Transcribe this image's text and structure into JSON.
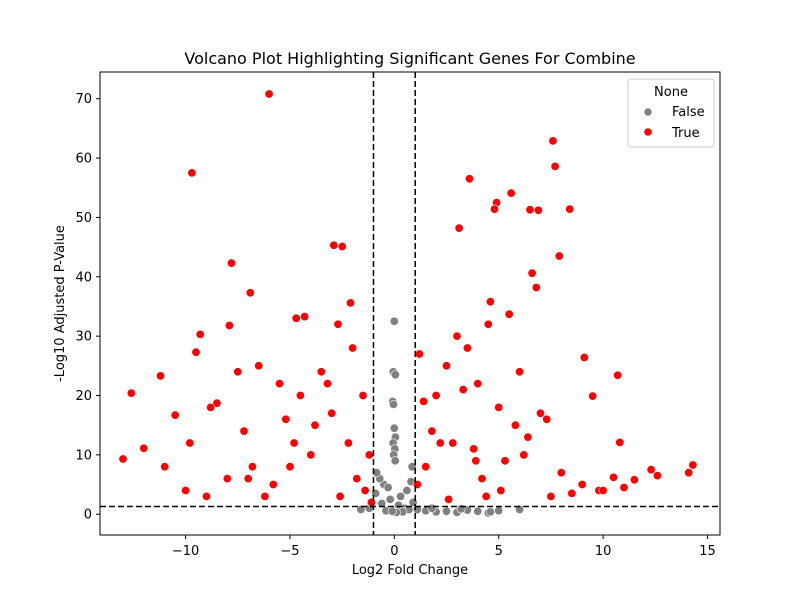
{
  "chart_data": {
    "type": "scatter",
    "title": "Volcano Plot Highlighting Significant Genes For Combine",
    "xlabel": "Log2 Fold Change",
    "ylabel": "-Log10 Adjusted P-Value",
    "xlim": [
      -14.1,
      15.6
    ],
    "ylim": [
      -3.5,
      74.5
    ],
    "xticks": [
      -10,
      -5,
      0,
      5,
      10,
      15
    ],
    "yticks": [
      0,
      10,
      20,
      30,
      40,
      50,
      60,
      70
    ],
    "xtick_labels": [
      "−10",
      "−5",
      "0",
      "5",
      "10",
      "15"
    ],
    "ytick_labels": [
      "0",
      "10",
      "20",
      "30",
      "40",
      "50",
      "60",
      "70"
    ],
    "grid": false,
    "thresholds": {
      "x": [
        -1,
        1
      ],
      "y": 1.3
    },
    "legend": {
      "title": "None",
      "position": "top-right",
      "entries": [
        "False",
        "True"
      ]
    },
    "series": [
      {
        "name": "False",
        "color": "#808080",
        "x": [
          0.0,
          -0.05,
          0.05,
          -0.08,
          -0.04,
          0.0,
          0.05,
          -0.06,
          0.02,
          -0.03,
          0.04,
          -0.5,
          0.6,
          -0.7,
          0.8,
          0.3,
          -0.3,
          0.9,
          -0.9,
          0.2,
          -0.2,
          0.5,
          -0.6,
          0.7,
          -0.4,
          0.4,
          0.1,
          -0.1,
          0.85,
          -0.85,
          1.1,
          1.5,
          2.0,
          2.5,
          3.0,
          3.5,
          4.0,
          4.5,
          5.0,
          6.0,
          1.8,
          3.2,
          4.6,
          -1.2,
          -1.6
        ],
        "y": [
          32.5,
          24.0,
          23.5,
          19.0,
          18.5,
          14.5,
          13.0,
          12.0,
          11.0,
          10.0,
          9.0,
          5.0,
          4.0,
          6.0,
          5.5,
          3.0,
          4.5,
          2.0,
          3.5,
          1.5,
          2.5,
          1.0,
          1.8,
          0.8,
          0.6,
          0.4,
          0.3,
          0.5,
          8.0,
          7.0,
          0.8,
          0.6,
          0.4,
          0.5,
          0.3,
          0.7,
          0.5,
          0.2,
          0.6,
          0.8,
          1.0,
          0.9,
          0.4,
          1.0,
          0.8
        ]
      },
      {
        "name": "True",
        "color": "#ff0000",
        "x": [
          -6.0,
          -9.7,
          -7.8,
          -2.9,
          -2.5,
          -6.9,
          -4.3,
          -4.7,
          -2.1,
          -2.7,
          -7.9,
          -9.5,
          -9.3,
          -11.2,
          -12.6,
          -13.0,
          -12.0,
          -10.5,
          -11.0,
          -9.8,
          -8.5,
          -7.5,
          -6.5,
          -5.5,
          -4.5,
          -3.5,
          -3.0,
          -1.5,
          -1.2,
          -2.0,
          -5.0,
          -8.0,
          -10.0,
          -6.2,
          -3.8,
          -1.8,
          -2.2,
          -4.0,
          -5.8,
          -7.2,
          -8.8,
          -9.0,
          -6.8,
          -1.4,
          -3.2,
          -2.6,
          -4.8,
          -7.0,
          -5.2,
          -1.1,
          7.6,
          7.7,
          5.6,
          3.6,
          4.9,
          4.8,
          6.5,
          6.9,
          8.4,
          3.1,
          7.9,
          6.6,
          6.8,
          5.5,
          4.6,
          9.1,
          9.5,
          10.7,
          10.8,
          10.5,
          11.5,
          12.3,
          12.6,
          14.1,
          14.3,
          11.0,
          9.8,
          8.5,
          7.5,
          2.0,
          2.5,
          3.0,
          3.5,
          4.0,
          4.5,
          5.0,
          5.8,
          6.2,
          1.5,
          1.2,
          1.8,
          2.8,
          3.3,
          4.2,
          5.3,
          6.0,
          7.0,
          8.0,
          1.1,
          1.4,
          2.2,
          3.8,
          5.1,
          6.4,
          7.3,
          9.0,
          10.0,
          2.6,
          3.9,
          4.4
        ],
        "y": [
          70.8,
          57.5,
          42.3,
          45.3,
          45.1,
          37.3,
          33.3,
          33.0,
          35.6,
          32.0,
          31.8,
          27.3,
          30.3,
          23.3,
          20.4,
          9.3,
          11.1,
          16.7,
          8.0,
          12.0,
          18.7,
          24.0,
          25.0,
          22.0,
          20.0,
          24.0,
          17.0,
          20.0,
          10.0,
          28.0,
          8.0,
          6.0,
          4.0,
          3.0,
          15.0,
          6.0,
          12.0,
          10.0,
          5.0,
          14.0,
          18.0,
          3.0,
          8.0,
          4.0,
          22.0,
          3.0,
          12.0,
          6.0,
          16.0,
          2.0,
          62.9,
          58.6,
          54.1,
          56.5,
          52.5,
          51.4,
          51.3,
          51.2,
          51.4,
          48.2,
          43.5,
          40.6,
          38.2,
          33.7,
          35.8,
          26.4,
          19.9,
          23.4,
          12.1,
          6.2,
          5.8,
          7.5,
          6.5,
          7.0,
          8.3,
          4.5,
          4.0,
          3.5,
          3.0,
          20.0,
          25.0,
          30.0,
          28.0,
          22.0,
          32.0,
          18.0,
          15.0,
          10.0,
          8.0,
          27.0,
          14.0,
          12.0,
          21.0,
          6.0,
          9.0,
          24.0,
          17.0,
          7.0,
          5.0,
          19.0,
          12.0,
          11.0,
          4.0,
          13.0,
          16.0,
          5.0,
          4.0,
          2.5,
          9.0,
          3.0
        ]
      }
    ]
  }
}
